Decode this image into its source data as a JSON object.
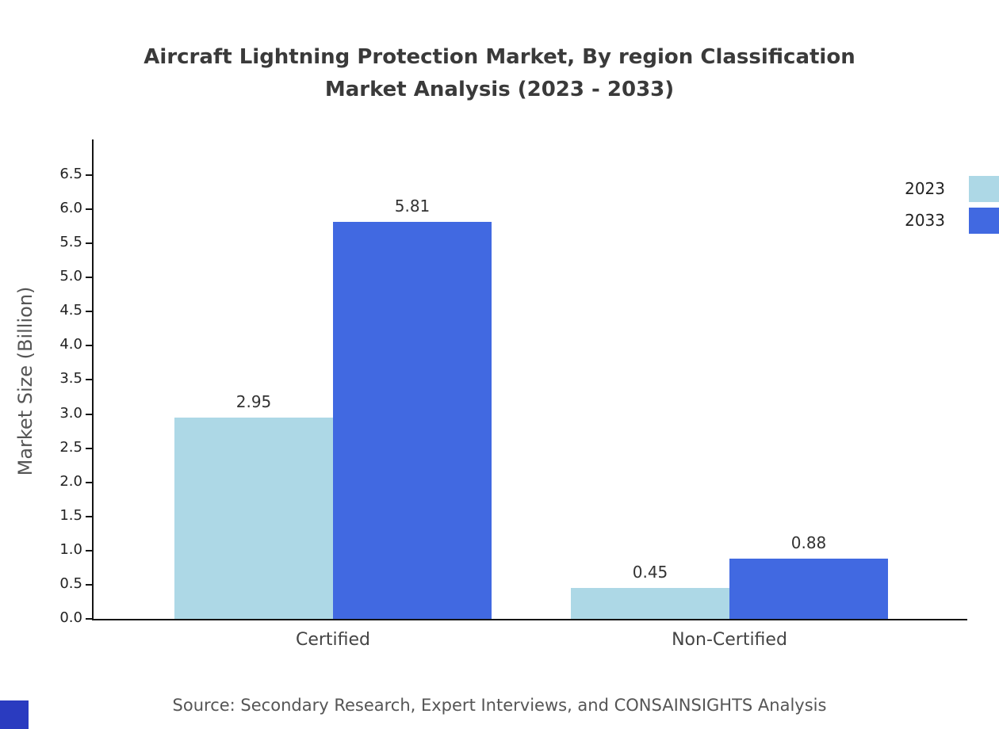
{
  "page": {
    "title_line1": "Aircraft Lightning Protection Market, By region Classification",
    "title_line2": "Market Analysis (2023 - 2033)",
    "source": "Source: Secondary Research, Expert Interviews, and CONSAINSIGHTS Analysis"
  },
  "legend": {
    "items": [
      {
        "label": "2023",
        "color": "#ADD8E6"
      },
      {
        "label": "2033",
        "color": "#4169E1"
      }
    ]
  },
  "accent": {
    "corner_color": "#2a3bc0"
  },
  "chart_data": {
    "type": "bar",
    "title": "Aircraft Lightning Protection Market, By region Classification Market Analysis (2023 - 2033)",
    "categories": [
      "Certified",
      "Non-Certified"
    ],
    "series": [
      {
        "name": "2023",
        "color": "#ADD8E6",
        "values": [
          2.95,
          0.45
        ],
        "labels": [
          "2.95",
          "0.45"
        ]
      },
      {
        "name": "2033",
        "color": "#4169E1",
        "values": [
          5.81,
          0.88
        ],
        "labels": [
          "5.81",
          "0.88"
        ]
      }
    ],
    "xlabel": "",
    "ylabel": "Market Size (Billion)",
    "ylim": [
      0,
      6.5
    ],
    "yticks": [
      "0.0",
      "0.5",
      "1.0",
      "1.5",
      "2.0",
      "2.5",
      "3.0",
      "3.5",
      "4.0",
      "4.5",
      "5.0",
      "5.5",
      "6.0",
      "6.5"
    ],
    "grid": false,
    "legend_position": "top-right",
    "value_labels": true
  }
}
